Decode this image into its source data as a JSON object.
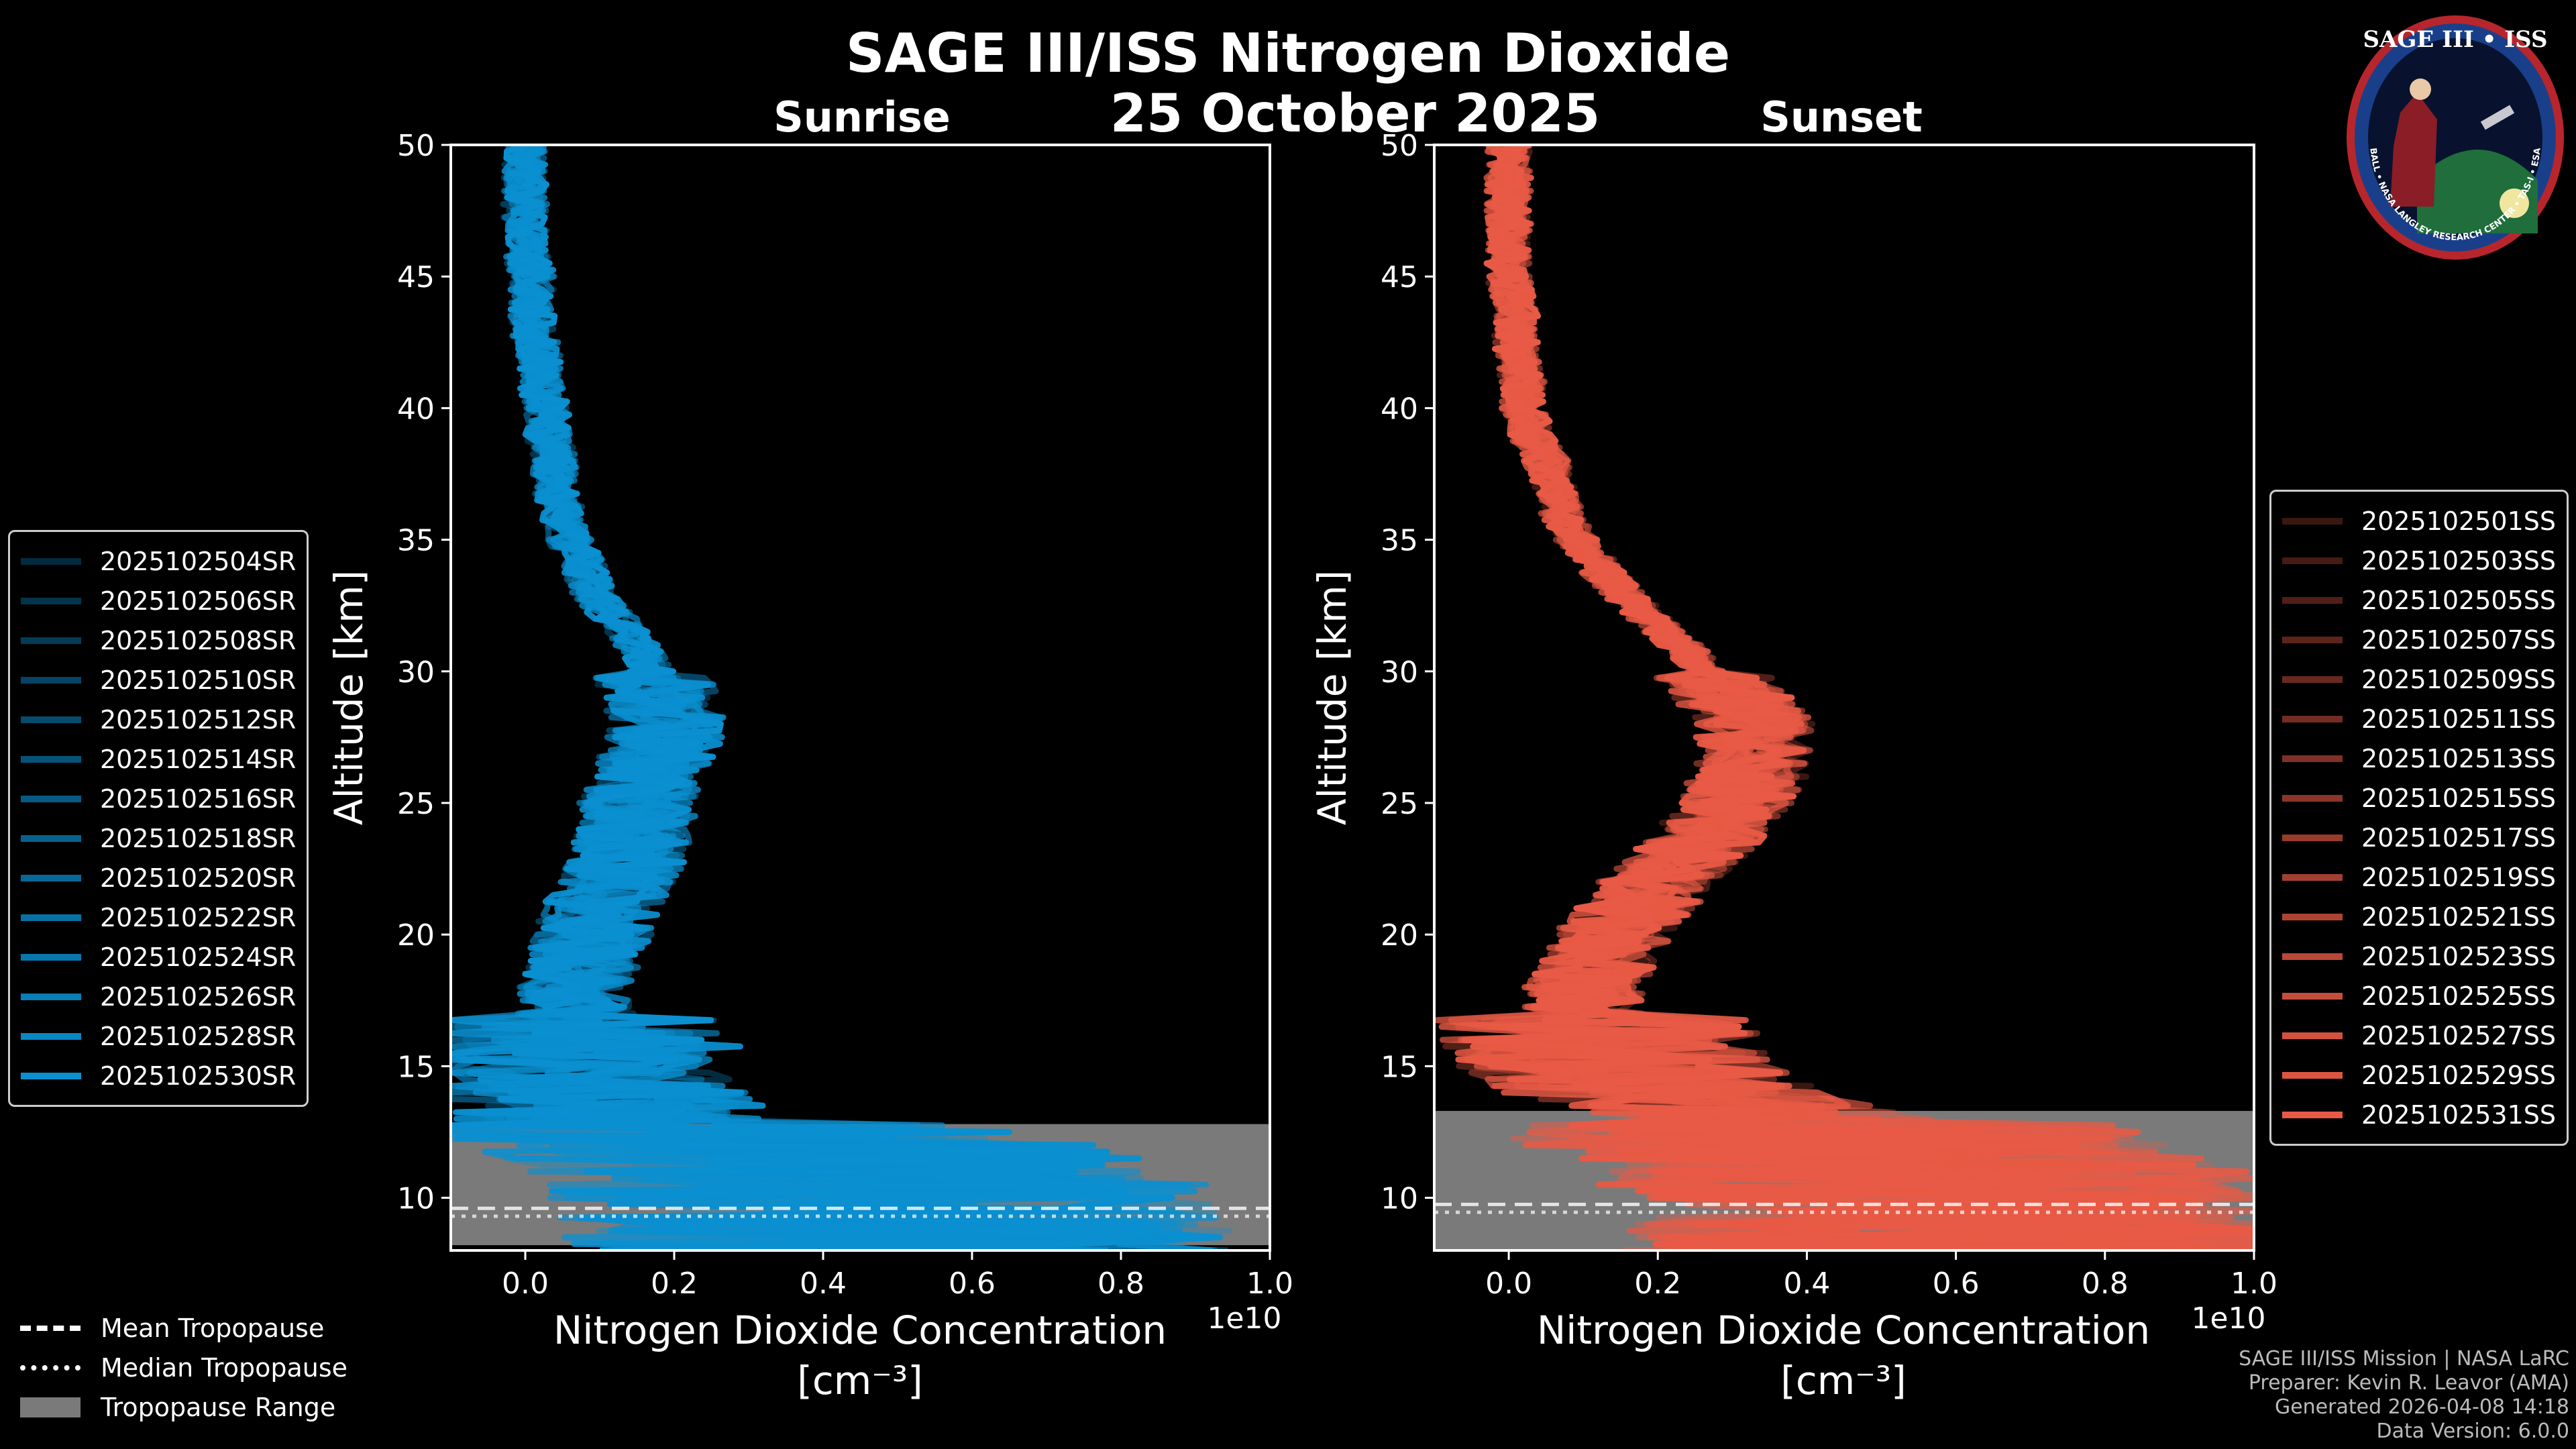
{
  "title": "SAGE III/ISS Nitrogen Dioxide",
  "date": "25 October 2025",
  "badge": {
    "name": "SAGE III • ISS",
    "ring_text": "BALL • NASA LANGLEY RESEARCH CENTER • TAS-I • ESA"
  },
  "colors": {
    "sunrise": "#0a8fd0",
    "sunset": "#e85a45",
    "tropo_range": "#7a7a7a"
  },
  "tropopause_legend": {
    "mean": "Mean Tropopause",
    "median": "Median Tropopause",
    "range": "Tropopause Range"
  },
  "credits": [
    "SAGE III/ISS Mission | NASA LaRC",
    "Preparer: Kevin R. Leavor (AMA)",
    "Generated 2026-04-08 14:18",
    "Data Version: 6.0.0"
  ],
  "chart_data": [
    {
      "type": "line",
      "panel": "Sunrise",
      "title": "Sunrise",
      "xlabel": "Nitrogen Dioxide Concentration",
      "xunit": "[cm⁻³]",
      "ylabel": "Altitude [km]",
      "x_scale_label": "1e10",
      "xlim": [
        -0.1,
        1.0
      ],
      "ylim": [
        8,
        50
      ],
      "xticks": [
        "0.0",
        "0.2",
        "0.4",
        "0.6",
        "0.8",
        "1.0"
      ],
      "yticks": [
        "10",
        "15",
        "20",
        "25",
        "30",
        "35",
        "40",
        "45",
        "50"
      ],
      "tropopause_range_km": [
        8.2,
        12.8
      ],
      "mean_profile": {
        "altitude": [
          8,
          9,
          10,
          11,
          12,
          13,
          14,
          15,
          16,
          17,
          18,
          19,
          20,
          21,
          22,
          23,
          24,
          25,
          26,
          27,
          28,
          29,
          30,
          31,
          32,
          33,
          34,
          35,
          36,
          37,
          38,
          39,
          40,
          41,
          42,
          43,
          44,
          45,
          46,
          47,
          48,
          49,
          50
        ],
        "value": [
          0.5,
          0.5,
          0.48,
          0.45,
          0.35,
          0.12,
          0.1,
          0.08,
          0.07,
          0.07,
          0.07,
          0.08,
          0.09,
          0.1,
          0.12,
          0.14,
          0.15,
          0.15,
          0.17,
          0.18,
          0.19,
          0.18,
          0.17,
          0.15,
          0.12,
          0.09,
          0.08,
          0.06,
          0.05,
          0.04,
          0.04,
          0.03,
          0.03,
          0.02,
          0.02,
          0.01,
          0.01,
          0.01,
          0.0,
          0.0,
          0.0,
          0.0,
          0.0
        ]
      },
      "series": [
        {
          "name": "2025102504SR",
          "alpha": 0.3
        },
        {
          "name": "2025102506SR",
          "alpha": 0.36
        },
        {
          "name": "2025102508SR",
          "alpha": 0.42
        },
        {
          "name": "2025102510SR",
          "alpha": 0.48
        },
        {
          "name": "2025102512SR",
          "alpha": 0.53
        },
        {
          "name": "2025102514SR",
          "alpha": 0.58
        },
        {
          "name": "2025102516SR",
          "alpha": 0.63
        },
        {
          "name": "2025102518SR",
          "alpha": 0.68
        },
        {
          "name": "2025102520SR",
          "alpha": 0.73
        },
        {
          "name": "2025102522SR",
          "alpha": 0.78
        },
        {
          "name": "2025102524SR",
          "alpha": 0.83
        },
        {
          "name": "2025102526SR",
          "alpha": 0.88
        },
        {
          "name": "2025102528SR",
          "alpha": 0.94
        },
        {
          "name": "2025102530SR",
          "alpha": 1.0
        }
      ]
    },
    {
      "type": "line",
      "panel": "Sunset",
      "title": "Sunset",
      "xlabel": "Nitrogen Dioxide Concentration",
      "xunit": "[cm⁻³]",
      "ylabel": "Altitude [km]",
      "x_scale_label": "1e10",
      "xlim": [
        -0.1,
        1.0
      ],
      "ylim": [
        8,
        50
      ],
      "xticks": [
        "0.0",
        "0.2",
        "0.4",
        "0.6",
        "0.8",
        "1.0"
      ],
      "yticks": [
        "10",
        "15",
        "20",
        "25",
        "30",
        "35",
        "40",
        "45",
        "50"
      ],
      "tropopause_range_km": [
        8.0,
        13.3
      ],
      "mean_profile": {
        "altitude": [
          8,
          9,
          10,
          11,
          12,
          13,
          14,
          15,
          16,
          17,
          18,
          19,
          20,
          21,
          22,
          23,
          24,
          25,
          26,
          27,
          28,
          29,
          30,
          31,
          32,
          33,
          34,
          35,
          36,
          37,
          38,
          39,
          40,
          41,
          42,
          43,
          44,
          45,
          46,
          47,
          48,
          49,
          50
        ],
        "value": [
          0.6,
          0.6,
          0.58,
          0.55,
          0.45,
          0.35,
          0.2,
          0.15,
          0.12,
          0.1,
          0.1,
          0.12,
          0.14,
          0.17,
          0.2,
          0.24,
          0.28,
          0.3,
          0.32,
          0.33,
          0.33,
          0.3,
          0.27,
          0.23,
          0.19,
          0.15,
          0.12,
          0.09,
          0.07,
          0.06,
          0.05,
          0.03,
          0.02,
          0.02,
          0.01,
          0.01,
          0.01,
          0.0,
          0.0,
          0.0,
          0.0,
          0.0,
          0.0
        ]
      },
      "series": [
        {
          "name": "2025102501SS",
          "alpha": 0.25
        },
        {
          "name": "2025102503SS",
          "alpha": 0.3
        },
        {
          "name": "2025102505SS",
          "alpha": 0.35
        },
        {
          "name": "2025102507SS",
          "alpha": 0.4
        },
        {
          "name": "2025102509SS",
          "alpha": 0.45
        },
        {
          "name": "2025102511SS",
          "alpha": 0.5
        },
        {
          "name": "2025102513SS",
          "alpha": 0.55
        },
        {
          "name": "2025102515SS",
          "alpha": 0.6
        },
        {
          "name": "2025102517SS",
          "alpha": 0.65
        },
        {
          "name": "2025102519SS",
          "alpha": 0.7
        },
        {
          "name": "2025102521SS",
          "alpha": 0.75
        },
        {
          "name": "2025102523SS",
          "alpha": 0.8
        },
        {
          "name": "2025102525SS",
          "alpha": 0.85
        },
        {
          "name": "2025102527SS",
          "alpha": 0.9
        },
        {
          "name": "2025102529SS",
          "alpha": 0.95
        },
        {
          "name": "2025102531SS",
          "alpha": 1.0
        }
      ]
    }
  ]
}
